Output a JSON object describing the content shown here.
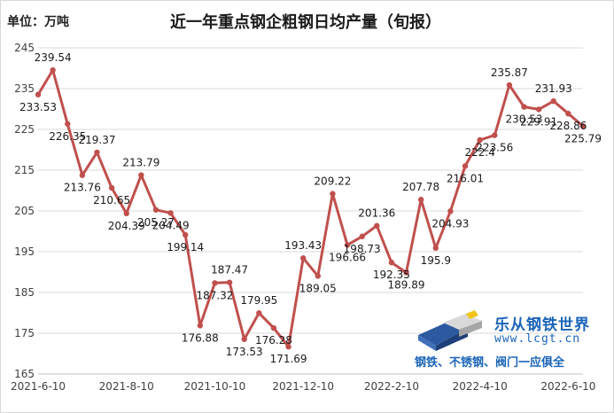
{
  "unit_label": "单位：万吨",
  "chart_data": {
    "type": "line",
    "title": "近一年重点钢企粗钢日均产量（旬报）",
    "xlabel": "",
    "ylabel": "",
    "ylim": [
      165,
      245
    ],
    "yticks": [
      165,
      175,
      185,
      195,
      205,
      215,
      225,
      235,
      245
    ],
    "x_tick_labels": [
      "2021-6-10",
      "2021-8-10",
      "2021-10-10",
      "2021-12-10",
      "2022-2-10",
      "2022-4-10",
      "2022-6-10"
    ],
    "x_tick_index": [
      0,
      6,
      12,
      18,
      24,
      30,
      36
    ],
    "grid": true,
    "line_color": "#c0504d",
    "series": [
      {
        "name": "",
        "values": [
          233.53,
          239.54,
          226.35,
          213.76,
          219.37,
          210.65,
          204.39,
          213.79,
          205.27,
          204.49,
          199.14,
          176.88,
          187.32,
          187.47,
          173.53,
          179.95,
          176.28,
          171.69,
          193.43,
          189.05,
          209.22,
          196.66,
          198.73,
          201.36,
          192.35,
          189.89,
          207.78,
          195.9,
          204.93,
          216.01,
          222.4,
          223.56,
          235.87,
          230.53,
          229.91,
          231.93,
          228.86,
          225.79
        ],
        "labels": [
          "233.53",
          "239.54",
          "226.35",
          "213.76",
          "219.37",
          "210.65",
          "204.39",
          "213.79",
          "205.27",
          "204.49",
          "199.14",
          "176.88",
          "187.32",
          "187.47",
          "173.53",
          "179.95",
          "176.28",
          "171.69",
          "193.43",
          "189.05",
          "209.22",
          "196.66",
          "198.73",
          "201.36",
          "192.35",
          "189.89",
          "207.78",
          "195.9",
          "204.93",
          "216.01",
          "222.4",
          "223.56",
          "235.87",
          "230.53",
          "229.91",
          "231.93",
          "228.86",
          "225.79"
        ]
      }
    ]
  },
  "watermark": {
    "brand": "乐从钢铁世界",
    "url": "www.lcgt.cn",
    "tagline": "钢铁、不锈钢、阀门一应俱全"
  }
}
